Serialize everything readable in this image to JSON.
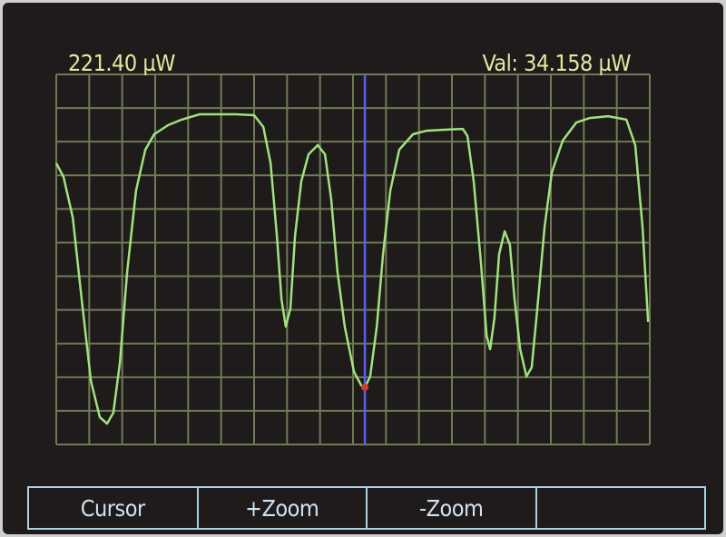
{
  "display": {
    "reference_level": "221.40 µW",
    "cursor_readout": "Val: 34.158 µW"
  },
  "softkeys": [
    {
      "label": "Cursor"
    },
    {
      "label": "+Zoom"
    },
    {
      "label": "-Zoom"
    },
    {
      "label": ""
    }
  ],
  "colors": {
    "background": "#1f1b1b",
    "grid": "#6e7b56",
    "trace": "#a0e27e",
    "cursor": "#5b5ff2",
    "cursor_marker": "#d83a2a",
    "readout_text": "#e4e6a2",
    "softkey_border": "#a9d2e6"
  },
  "chart_data": {
    "type": "line",
    "x_divisions": 18,
    "y_divisions": 11,
    "ylim": [
      0,
      221.4
    ],
    "yunit": "µW",
    "grid": true,
    "xlim": [
      0,
      18
    ],
    "cursor": {
      "x": 9.36,
      "y": 34.158
    },
    "series": [
      {
        "x": [
          0,
          0.22,
          0.5,
          0.77,
          1.05,
          1.32,
          1.54,
          1.73,
          1.93,
          2.15,
          2.42,
          2.7,
          2.97,
          3.39,
          3.8,
          4.35,
          4.9,
          5.45,
          6.0,
          6.28,
          6.5,
          6.69,
          6.83,
          6.96,
          7.1,
          7.24,
          7.43,
          7.65,
          7.93,
          8.15,
          8.34,
          8.53,
          8.75,
          9.03,
          9.25,
          9.36,
          9.52,
          9.72,
          9.91,
          10.13,
          10.4,
          10.82,
          11.23,
          11.78,
          12.33,
          12.47,
          12.66,
          12.88,
          13.05,
          13.16,
          13.29,
          13.43,
          13.6,
          13.76,
          13.9,
          14.07,
          14.26,
          14.42,
          14.59,
          14.81,
          15.03,
          15.36,
          15.77,
          16.18,
          16.74,
          17.29,
          17.56,
          17.78,
          17.95
        ],
        "y": [
          168.2,
          160.1,
          135.7,
          86.8,
          38.0,
          16.3,
          12.5,
          19.0,
          48.8,
          103.1,
          151.9,
          176.3,
          185.6,
          191.0,
          194.3,
          197.5,
          197.5,
          197.5,
          197.0,
          189.9,
          168.2,
          124.8,
          86.8,
          70.5,
          81.4,
          124.8,
          157.4,
          173.6,
          179.1,
          173.6,
          146.5,
          103.1,
          70.5,
          43.4,
          35.3,
          34.158,
          40.7,
          70.5,
          113.9,
          151.9,
          176.3,
          185.6,
          187.7,
          188.3,
          188.8,
          184.5,
          157.4,
          108.5,
          65.1,
          57.0,
          76.0,
          113.9,
          127.5,
          119.4,
          86.8,
          57.0,
          40.7,
          46.1,
          81.4,
          130.2,
          162.8,
          181.8,
          192.6,
          195.3,
          196.4,
          194.3,
          179.1,
          130.2,
          73.3
        ]
      }
    ]
  }
}
